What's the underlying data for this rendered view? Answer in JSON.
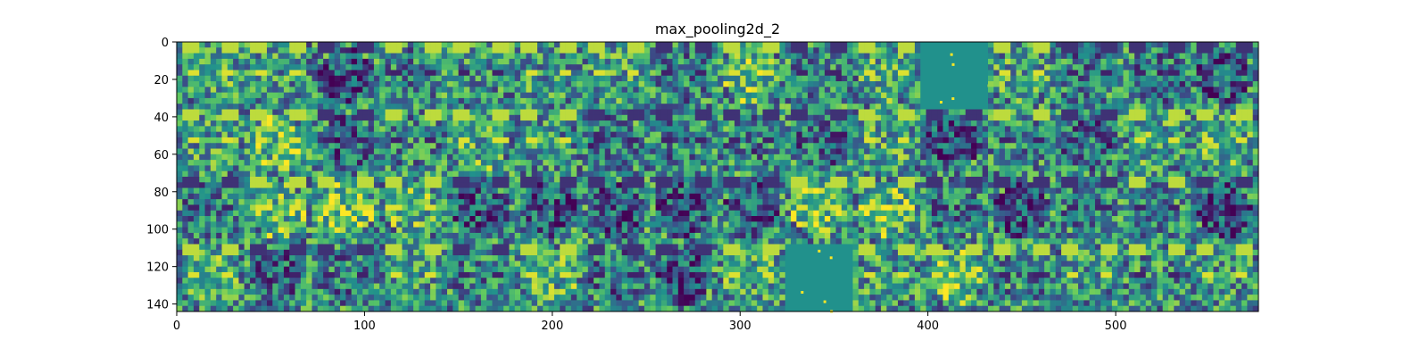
{
  "chart_data": {
    "type": "heatmap",
    "title": "max_pooling2d_2",
    "xlabel": "",
    "ylabel": "",
    "x_range": [
      0,
      576
    ],
    "y_range": [
      0,
      144
    ],
    "x_ticks": [
      0,
      100,
      200,
      300,
      400,
      500
    ],
    "y_ticks": [
      0,
      20,
      40,
      60,
      80,
      100,
      120,
      140
    ],
    "grid": false,
    "colormap": "viridis",
    "tile_grid": {
      "rows": 4,
      "cols": 16,
      "tile_size": 36
    },
    "colors": {
      "low": "#440154",
      "mid": "#21918c",
      "high": "#fde725"
    },
    "blank_tiles": [
      [
        0,
        11
      ],
      [
        3,
        9
      ]
    ]
  }
}
